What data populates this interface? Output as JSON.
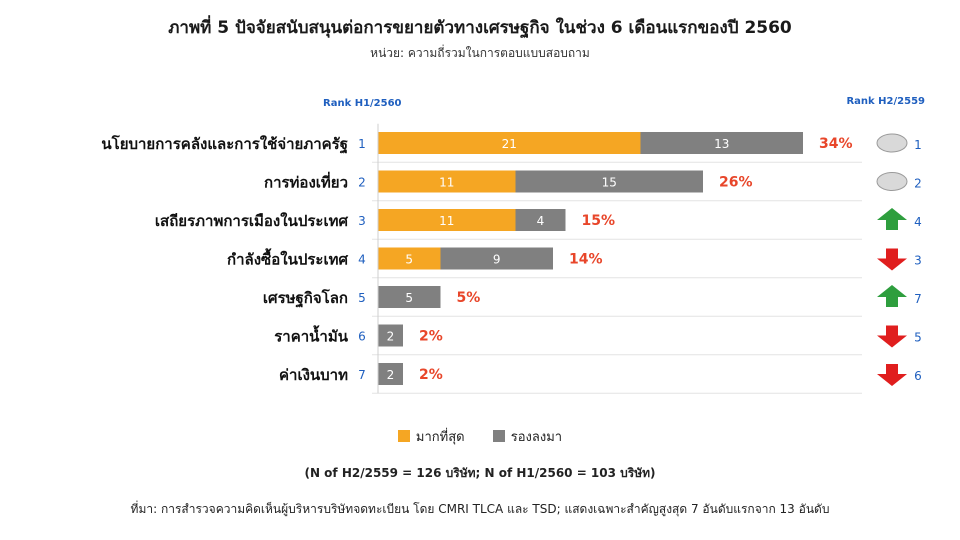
{
  "title": "ภาพที่ 5 ปัจจัยสนับสนุนต่อการขยายตัวทางเศรษฐกิจ ในช่วง 6 เดือนแรกของปี 2560",
  "subtitle": "หน่วย: ความถี่รวมในการตอบแบบสอบถาม",
  "rank_h1_label": "Rank H1/2560",
  "rank_h2_label": "Rank H2/2559",
  "legend": {
    "most": "มากที่สุด",
    "second": "รองลงมา"
  },
  "note": "(N of H2/2559 = 126 บริษัท; N of H1/2560 = 103 บริษัท)",
  "source": "ที่มา: การสำรวจความคิดเห็นผู้บริหารบริษัทจดทะเบียน  โดย CMRI TLCA และ TSD; แสดงเฉพาะสำคัญสูงสุด 7 อันดับแรกจาก 13 อันดับ",
  "colors": {
    "most": "#F5A623",
    "second": "#808080",
    "percent": "#E8462A",
    "rank": "#1F5FBF",
    "up": "#2E9E3E",
    "down": "#E01E1E",
    "same": "#D9D9D9"
  },
  "chart_data": {
    "type": "bar",
    "orientation": "horizontal",
    "stacked": true,
    "series": [
      {
        "name": "มากที่สุด",
        "values": [
          21,
          11,
          11,
          5,
          0,
          0,
          0
        ]
      },
      {
        "name": "รองลงมา",
        "values": [
          13,
          15,
          4,
          9,
          5,
          2,
          2
        ]
      }
    ],
    "categories": [
      "นโยบายการคลังและการใช้จ่ายภาครัฐ",
      "การท่องเที่ยว",
      "เสถียรภาพการเมืองในประเทศ",
      "กำลังซื้อในประเทศ",
      "เศรษฐกิจโลก",
      "ราคาน้ำมัน",
      "ค่าเงินบาท"
    ],
    "rank_h1": [
      "1",
      "2",
      "3",
      "4",
      "5",
      "6",
      "7"
    ],
    "totals": [
      "34%",
      "26%",
      "15%",
      "14%",
      "5%",
      "2%",
      "2%"
    ],
    "rank_h2": [
      "1",
      "2",
      "4",
      "3",
      "7",
      "5",
      "6"
    ],
    "change": [
      "same",
      "same",
      "up",
      "down",
      "up",
      "down",
      "down"
    ],
    "xlim": [
      0,
      34
    ]
  }
}
